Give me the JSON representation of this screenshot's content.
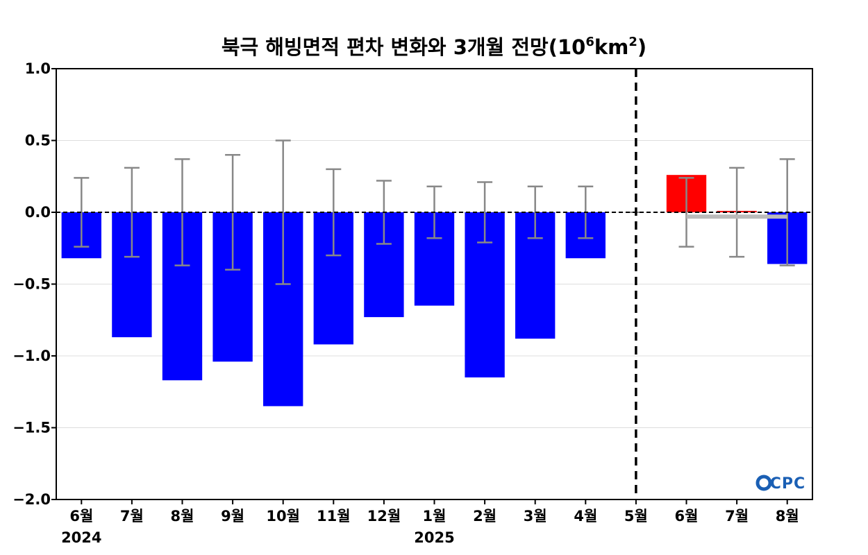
{
  "chart_data": {
    "type": "bar",
    "title": {
      "main": "북극 해빙면적 편차 변화와 3개월 전망(10",
      "sup1": "6",
      "mid": "km",
      "sup2": "2",
      "end": ")"
    },
    "categories": [
      "6월",
      "7월",
      "8월",
      "9월",
      "10월",
      "11월",
      "12월",
      "1월",
      "2월",
      "3월",
      "4월",
      "5월",
      "6월",
      "7월",
      "8월"
    ],
    "year_labels": [
      {
        "index": 0,
        "label": "2024"
      },
      {
        "index": 7,
        "label": "2025"
      }
    ],
    "series": [
      {
        "values": [
          -0.32,
          -0.87,
          -1.17,
          -1.04,
          -1.35,
          -0.92,
          -0.73,
          -0.65,
          -1.15,
          -0.88,
          -0.32,
          0.0,
          0.26,
          0.01,
          -0.36
        ],
        "colors": [
          "#0000ff",
          "#0000ff",
          "#0000ff",
          "#0000ff",
          "#0000ff",
          "#0000ff",
          "#0000ff",
          "#0000ff",
          "#0000ff",
          "#0000ff",
          "#0000ff",
          "#0000ff",
          "#ff0000",
          "#ff0000",
          "#0000ff"
        ]
      }
    ],
    "error_bars": [
      0.24,
      0.31,
      0.37,
      0.4,
      0.5,
      0.3,
      0.22,
      0.18,
      0.21,
      0.18,
      0.18,
      0.0,
      0.24,
      0.31,
      0.37
    ],
    "forecast_line": {
      "from_index": 12,
      "to_index": 14,
      "value": -0.03,
      "color": "#bbbbbb"
    },
    "divider_index": 11,
    "ylim": [
      -2.0,
      1.0
    ],
    "yticks": [
      1.0,
      0.5,
      0.0,
      -0.5,
      -1.0,
      -1.5,
      -2.0
    ],
    "ytick_labels": [
      "1.0",
      "0.5",
      "0.0",
      "−0.5",
      "−1.0",
      "−1.5",
      "−2.0"
    ],
    "grid": true,
    "xlabel": "",
    "ylabel": ""
  },
  "logo": {
    "text": "OCPC"
  }
}
